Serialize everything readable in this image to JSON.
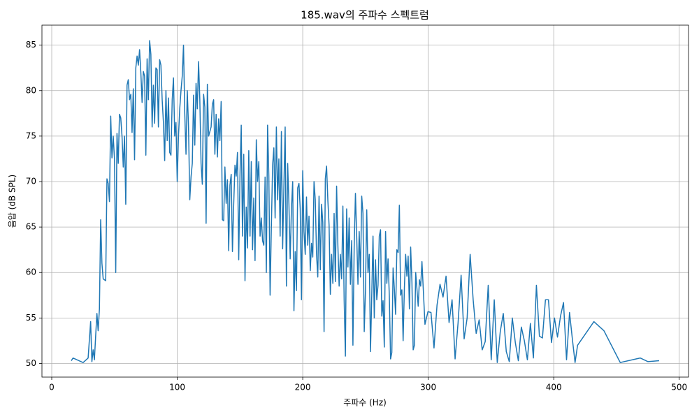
{
  "chart_data": {
    "type": "line",
    "title": "185.wav의 주파수 스펙트럼",
    "xlabel": "주파수 (Hz)",
    "ylabel": "음압 (dB SPL)",
    "color": "#1f77b4",
    "grid": true,
    "xlim": [
      -7.8,
      507.4
    ],
    "ylim": [
      48.5,
      87.2
    ],
    "xticks": [
      0,
      100,
      200,
      300,
      400,
      500
    ],
    "yticks": [
      50,
      55,
      60,
      65,
      70,
      75,
      80,
      85
    ],
    "x": [
      15.6,
      17,
      25,
      29,
      31,
      32,
      33,
      34,
      35,
      36,
      37,
      38,
      39,
      40,
      41,
      43,
      44,
      45,
      46,
      47,
      48,
      49,
      50,
      51,
      52,
      53,
      54,
      55,
      56,
      57,
      58,
      59,
      60,
      61,
      62,
      63,
      64,
      65,
      66,
      67,
      68,
      69,
      70,
      71,
      72,
      73,
      74,
      75,
      76,
      77,
      78,
      79,
      80,
      81,
      82,
      83,
      84,
      85,
      86,
      87,
      88,
      89,
      90,
      91,
      92,
      93,
      94,
      95,
      96,
      97,
      98,
      99,
      100,
      101,
      102,
      103,
      104,
      105,
      106,
      107,
      108,
      109,
      110,
      111,
      112,
      113,
      114,
      115,
      116,
      117,
      118,
      119,
      120,
      121,
      122,
      123,
      124,
      125,
      126,
      127,
      128,
      129,
      130,
      131,
      132,
      133,
      134,
      135,
      136,
      137,
      138,
      139,
      140,
      141,
      142,
      143,
      144,
      145,
      146,
      147,
      148,
      149,
      150,
      151,
      152,
      153,
      154,
      155,
      156,
      157,
      158,
      159,
      160,
      161,
      162,
      163,
      164,
      165,
      166,
      167,
      168,
      169,
      170,
      171,
      172,
      173,
      174,
      175,
      176,
      177,
      178,
      179,
      180,
      181,
      182,
      183,
      184,
      185,
      186,
      187,
      188,
      189,
      190,
      191,
      192,
      193,
      194,
      195,
      196,
      197,
      198,
      199,
      200,
      201,
      202,
      203,
      204,
      205,
      206,
      207,
      208,
      209,
      210,
      211,
      212,
      213,
      214,
      215,
      216,
      217,
      218,
      219,
      220,
      221,
      222,
      223,
      224,
      225,
      226,
      227,
      228,
      229,
      230,
      231,
      232,
      233,
      234,
      235,
      236,
      237,
      238,
      239,
      240,
      241,
      242,
      243,
      244,
      245,
      246,
      247,
      248,
      249,
      250,
      251,
      252,
      253,
      254,
      255,
      256,
      257,
      258,
      259,
      260,
      261,
      262,
      263,
      264,
      265,
      266,
      267,
      268,
      269,
      270,
      271,
      272,
      273,
      274,
      275,
      276,
      277,
      278,
      279,
      280,
      281,
      282,
      283,
      284,
      285,
      286,
      287,
      288,
      289,
      290,
      291,
      292,
      293,
      294,
      295,
      297.4,
      299.8,
      302.2,
      304.6,
      307,
      309.4,
      311.8,
      314.2,
      316.6,
      319,
      321.4,
      323.8,
      326.2,
      328.6,
      331,
      333.4,
      335.8,
      338.2,
      340.6,
      343,
      345.4,
      347.8,
      350.2,
      352.6,
      355,
      357.4,
      359.8,
      362.2,
      364.6,
      367,
      369.4,
      371.8,
      374.2,
      376.6,
      379,
      381.4,
      383.8,
      386.2,
      388.6,
      391,
      393.4,
      395.8,
      398.2,
      400.6,
      403,
      405.4,
      407.8,
      410.2,
      412.6,
      415,
      417,
      419,
      432,
      440,
      453,
      469,
      475,
      484
    ],
    "values": [
      50.3,
      50.6,
      50.1,
      50.6,
      54.6,
      50.2,
      51.5,
      50.4,
      53,
      55.5,
      53.6,
      56,
      65.8,
      61,
      59.3,
      59.1,
      70.3,
      69.8,
      67.8,
      77.2,
      72.6,
      75,
      72.5,
      60,
      75.3,
      72,
      77.4,
      77,
      75,
      71.6,
      75,
      67.5,
      80.6,
      81.2,
      79,
      79.6,
      75.4,
      80.2,
      72.4,
      82.5,
      83.8,
      82.8,
      84.5,
      82,
      78.7,
      82.1,
      81.6,
      72.9,
      83.5,
      79,
      85.5,
      84,
      76,
      80.6,
      76.4,
      82.5,
      82.3,
      76,
      83.4,
      82.8,
      79,
      76.5,
      72.3,
      80,
      74.5,
      79.2,
      73.2,
      72.9,
      79,
      81.4,
      75,
      76.5,
      70,
      75,
      78,
      80,
      81.6,
      85,
      77.5,
      73,
      80,
      76,
      68,
      70.5,
      72,
      79.5,
      74,
      80.8,
      78,
      83.2,
      79,
      72,
      69.7,
      79.6,
      78.2,
      65.4,
      80.7,
      75,
      75.5,
      76,
      78.5,
      79,
      73,
      77.4,
      72.7,
      76.9,
      74.5,
      78.8,
      65.8,
      65.7,
      71.6,
      67.6,
      70.2,
      62.4,
      69.6,
      70.8,
      62.3,
      67.5,
      71.8,
      70.6,
      73.2,
      61.4,
      70.6,
      76.2,
      64,
      73,
      59.1,
      67.2,
      62.7,
      73.4,
      64,
      72.2,
      62.5,
      68.2,
      61.3,
      74.6,
      70,
      72.2,
      64,
      66,
      63.5,
      63,
      70.5,
      60,
      76.2,
      70.6,
      57.5,
      65,
      71.8,
      73.7,
      66,
      76,
      68,
      72.5,
      64,
      75.5,
      62.6,
      69.5,
      76,
      58.5,
      72,
      67.5,
      61.5,
      67,
      70,
      55.8,
      62.3,
      58,
      69.3,
      69.8,
      67,
      57,
      71.2,
      64.5,
      62,
      68.3,
      63,
      66.2,
      60.2,
      63.2,
      61.7,
      70,
      68,
      62,
      59.5,
      68.4,
      60.3,
      67.5,
      65.5,
      53.5,
      70.3,
      71.7,
      68,
      65.2,
      57.6,
      62,
      58.8,
      66.5,
      59,
      69.5,
      63,
      58.5,
      62,
      59.3,
      67.3,
      57,
      50.8,
      67,
      60.6,
      66,
      58.7,
      63.5,
      52,
      62.8,
      68.7,
      64,
      58.7,
      64.5,
      59.5,
      68.4,
      66.5,
      53.5,
      58,
      66.9,
      60,
      62,
      51.3,
      57.5,
      64,
      55,
      61.4,
      57,
      58.6,
      64,
      64.7,
      55.2,
      56.9,
      51.8,
      64.5,
      58.8,
      61.5,
      57.4,
      50.5,
      51.2,
      60.5,
      58.2,
      55.4,
      62.5,
      62.2,
      67.4,
      57.5,
      58.1,
      52.5,
      58.3,
      62,
      59.6,
      61.8,
      56,
      62.8,
      59,
      51.5,
      52,
      60,
      58.2,
      56.3,
      59.2,
      58.5,
      61.2,
      54.3,
      55.7,
      55.6,
      51.7,
      56.4,
      58.7,
      57.3,
      59.6,
      54.5,
      57,
      50.5,
      54.5,
      59.7,
      52.7,
      55,
      62,
      57,
      53.3,
      54.8,
      51.5,
      52.4,
      58.6,
      50.4,
      57,
      50.1,
      53.5,
      55.5,
      51.3,
      50.2,
      55,
      52.3,
      50.3,
      54,
      52.5,
      50.4,
      54.4,
      50.6,
      58.6,
      53,
      52.8,
      57,
      57,
      52.3,
      55,
      52.9,
      55.2,
      56.7,
      50.4,
      55.6,
      52.5,
      50.1,
      52,
      54.6,
      53.6,
      50.1,
      50.6,
      50.2,
      50.3
    ]
  }
}
